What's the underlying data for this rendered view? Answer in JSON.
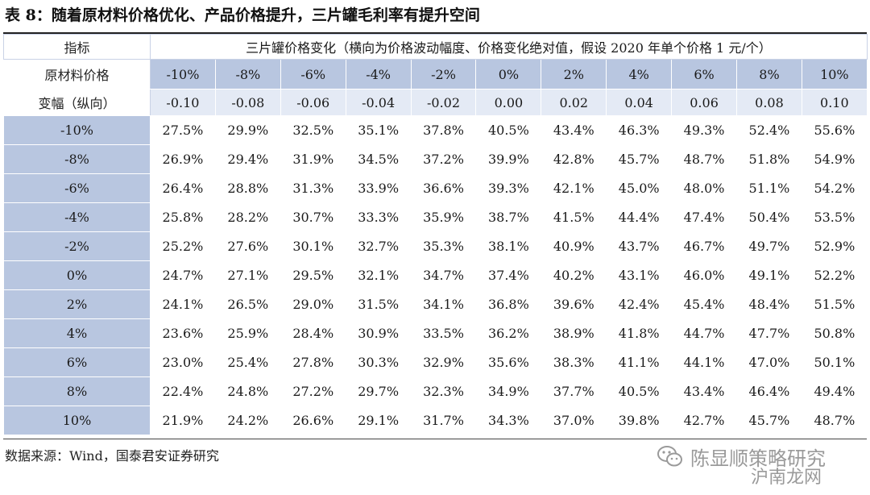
{
  "title": "表 8：随着原材料价格优化、产品价格提升，三片罐毛利率有提升空间",
  "table": {
    "corner_label": "指标",
    "column_group_header": "三片罐价格变化（横向为价格波动幅度、价格变化绝对值，假设 2020 年单个价格 1 元/个）",
    "row_axis_label_line1": "原材料价格",
    "row_axis_label_line2": "变幅（纵向）",
    "col_pct": [
      "-10%",
      "-8%",
      "-6%",
      "-4%",
      "-2%",
      "0%",
      "2%",
      "4%",
      "6%",
      "8%",
      "10%"
    ],
    "col_abs": [
      "-0.10",
      "-0.08",
      "-0.06",
      "-0.04",
      "-0.02",
      "0.00",
      "0.02",
      "0.04",
      "0.06",
      "0.08",
      "0.10"
    ],
    "rows": [
      {
        "label": "-10%",
        "values": [
          "27.5%",
          "29.9%",
          "32.5%",
          "35.1%",
          "37.8%",
          "40.5%",
          "43.4%",
          "46.3%",
          "49.3%",
          "52.4%",
          "55.6%"
        ]
      },
      {
        "label": "-8%",
        "values": [
          "26.9%",
          "29.4%",
          "31.9%",
          "34.5%",
          "37.2%",
          "39.9%",
          "42.8%",
          "45.7%",
          "48.7%",
          "51.8%",
          "54.9%"
        ]
      },
      {
        "label": "-6%",
        "values": [
          "26.4%",
          "28.8%",
          "31.3%",
          "33.9%",
          "36.6%",
          "39.3%",
          "42.1%",
          "45.0%",
          "48.0%",
          "51.1%",
          "54.2%"
        ]
      },
      {
        "label": "-4%",
        "values": [
          "25.8%",
          "28.2%",
          "30.7%",
          "33.3%",
          "35.9%",
          "38.7%",
          "41.5%",
          "44.4%",
          "47.4%",
          "50.4%",
          "53.5%"
        ]
      },
      {
        "label": "-2%",
        "values": [
          "25.2%",
          "27.6%",
          "30.1%",
          "32.7%",
          "35.3%",
          "38.1%",
          "40.9%",
          "43.7%",
          "46.7%",
          "49.7%",
          "52.9%"
        ]
      },
      {
        "label": "0%",
        "values": [
          "24.7%",
          "27.1%",
          "29.5%",
          "32.1%",
          "34.7%",
          "37.4%",
          "40.2%",
          "43.1%",
          "46.0%",
          "49.1%",
          "52.2%"
        ]
      },
      {
        "label": "2%",
        "values": [
          "24.1%",
          "26.5%",
          "29.0%",
          "31.5%",
          "34.1%",
          "36.8%",
          "39.6%",
          "42.4%",
          "45.4%",
          "48.4%",
          "51.5%"
        ]
      },
      {
        "label": "4%",
        "values": [
          "23.6%",
          "25.9%",
          "28.4%",
          "30.9%",
          "33.5%",
          "36.2%",
          "38.9%",
          "41.8%",
          "44.7%",
          "47.7%",
          "50.8%"
        ]
      },
      {
        "label": "6%",
        "values": [
          "23.0%",
          "25.4%",
          "27.8%",
          "30.3%",
          "32.9%",
          "35.6%",
          "38.3%",
          "41.1%",
          "44.1%",
          "47.0%",
          "50.1%"
        ]
      },
      {
        "label": "8%",
        "values": [
          "22.4%",
          "24.8%",
          "27.2%",
          "29.7%",
          "32.3%",
          "34.9%",
          "37.7%",
          "40.5%",
          "43.4%",
          "46.4%",
          "49.4%"
        ]
      },
      {
        "label": "10%",
        "values": [
          "21.9%",
          "24.2%",
          "26.6%",
          "29.1%",
          "31.7%",
          "34.3%",
          "37.0%",
          "39.8%",
          "42.7%",
          "45.7%",
          "48.7%"
        ]
      }
    ]
  },
  "source": "数据来源：Wind，国泰君安证券研究",
  "watermark": {
    "text": "陈显顺策略研究",
    "text2": "沪南龙网",
    "icon": "wechat-icon"
  },
  "colors": {
    "header_dark": "#b8c6e0",
    "header_light": "#e4eaf5",
    "row_label": "#b8c6e0"
  }
}
